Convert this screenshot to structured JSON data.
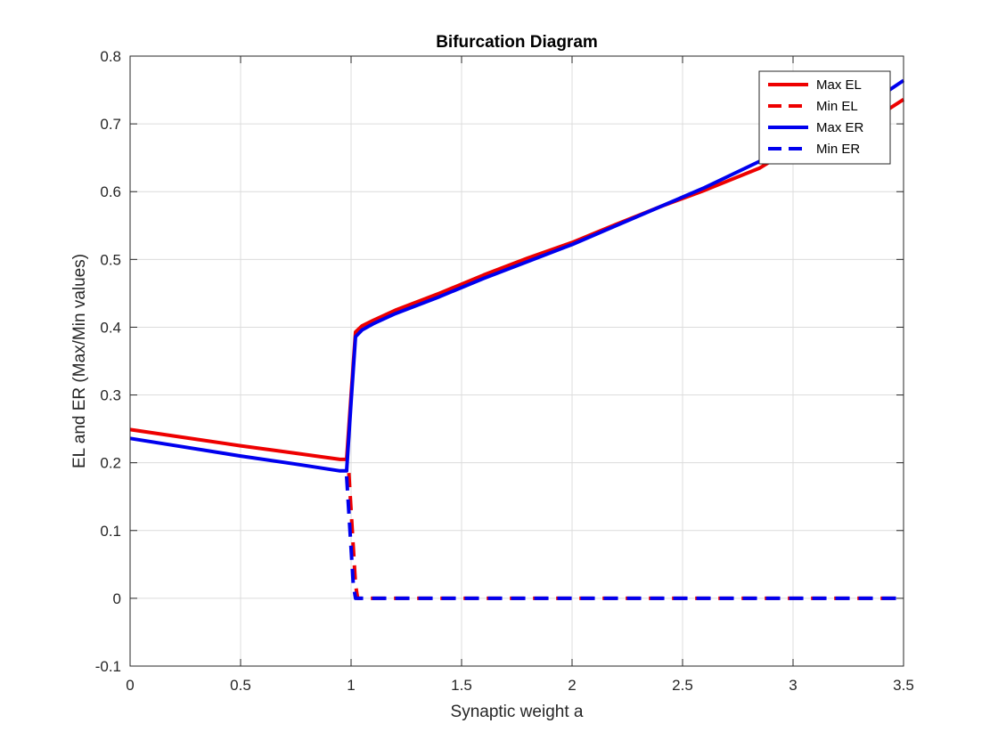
{
  "chart_data": {
    "type": "line",
    "title": "Bifurcation Diagram",
    "xlabel": "Synaptic weight a",
    "ylabel": "EL and ER (Max/Min values)",
    "xlim": [
      0,
      3.5
    ],
    "ylim": [
      -0.1,
      0.8
    ],
    "xticks": [
      0,
      0.5,
      1,
      1.5,
      2,
      2.5,
      3,
      3.5
    ],
    "xtick_labels": [
      "0",
      "0.5",
      "1",
      "1.5",
      "2",
      "2.5",
      "3",
      "3.5"
    ],
    "yticks": [
      -0.1,
      0,
      0.1,
      0.2,
      0.3,
      0.4,
      0.5,
      0.6,
      0.7,
      0.8
    ],
    "ytick_labels": [
      "-0.1",
      "0",
      "0.1",
      "0.2",
      "0.3",
      "0.4",
      "0.5",
      "0.6",
      "0.7",
      "0.8"
    ],
    "grid": true,
    "legend_position": "top-right",
    "series": [
      {
        "name": "Max EL",
        "color": "#ee0000",
        "style": "solid",
        "x": [
          0,
          0.25,
          0.5,
          0.75,
          0.95,
          0.98,
          1.0,
          1.02,
          1.05,
          1.1,
          1.2,
          1.4,
          1.6,
          1.8,
          2.0,
          2.2,
          2.4,
          2.6,
          2.85,
          3.0,
          3.2,
          3.4,
          3.5
        ],
        "y": [
          0.249,
          0.237,
          0.225,
          0.214,
          0.205,
          0.205,
          0.3,
          0.393,
          0.402,
          0.41,
          0.425,
          0.45,
          0.477,
          0.502,
          0.525,
          0.552,
          0.578,
          0.602,
          0.635,
          0.665,
          0.685,
          0.715,
          0.736
        ]
      },
      {
        "name": "Min EL",
        "color": "#ee0000",
        "style": "dashed",
        "x": [
          0.99,
          1.02,
          1.03,
          1.5,
          2.0,
          2.5,
          3.0,
          3.5
        ],
        "y": [
          0.185,
          0.02,
          0.0,
          0.0,
          0.0,
          0.0,
          0.0,
          0.0
        ]
      },
      {
        "name": "Max ER",
        "color": "#0000ee",
        "style": "solid",
        "x": [
          0,
          0.25,
          0.5,
          0.75,
          0.95,
          0.98,
          1.0,
          1.02,
          1.05,
          1.1,
          1.2,
          1.4,
          1.6,
          1.8,
          2.0,
          2.2,
          2.4,
          2.6,
          2.85,
          3.0,
          3.2,
          3.4,
          3.5
        ],
        "y": [
          0.236,
          0.223,
          0.21,
          0.198,
          0.188,
          0.188,
          0.29,
          0.386,
          0.396,
          0.405,
          0.42,
          0.445,
          0.472,
          0.497,
          0.522,
          0.55,
          0.578,
          0.606,
          0.645,
          0.675,
          0.7,
          0.742,
          0.764
        ]
      },
      {
        "name": "Min ER",
        "color": "#0000ee",
        "style": "dashed",
        "x": [
          0.98,
          1.01,
          1.02,
          1.5,
          2.0,
          2.5,
          3.0,
          3.5
        ],
        "y": [
          0.18,
          0.02,
          0.0,
          0.0,
          0.0,
          0.0,
          0.0,
          0.0
        ]
      }
    ]
  }
}
